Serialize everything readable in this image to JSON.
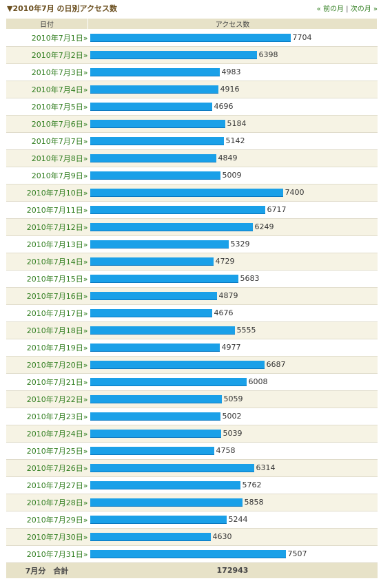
{
  "header": {
    "title": "▼2010年7月 の日別アクセス数",
    "prev_label": "« 前の月",
    "separator": "|",
    "next_label": "次の月 »"
  },
  "table": {
    "col_date": "日付",
    "col_access": "アクセス数",
    "total_label": "7月分　合計",
    "total_value": "172943"
  },
  "colors": {
    "bar": "#1aa0e8",
    "date_link": "#2f7d1e",
    "header_bg": "#e7e2c8"
  },
  "chart_data": {
    "type": "bar",
    "orientation": "horizontal",
    "categories": [
      "2010年7月1日»",
      "2010年7月2日»",
      "2010年7月3日»",
      "2010年7月4日»",
      "2010年7月5日»",
      "2010年7月6日»",
      "2010年7月7日»",
      "2010年7月8日»",
      "2010年7月9日»",
      "2010年7月10日»",
      "2010年7月11日»",
      "2010年7月12日»",
      "2010年7月13日»",
      "2010年7月14日»",
      "2010年7月15日»",
      "2010年7月16日»",
      "2010年7月17日»",
      "2010年7月18日»",
      "2010年7月19日»",
      "2010年7月20日»",
      "2010年7月21日»",
      "2010年7月22日»",
      "2010年7月23日»",
      "2010年7月24日»",
      "2010年7月25日»",
      "2010年7月26日»",
      "2010年7月27日»",
      "2010年7月28日»",
      "2010年7月29日»",
      "2010年7月30日»",
      "2010年7月31日»"
    ],
    "values": [
      7704,
      6398,
      4983,
      4916,
      4696,
      5184,
      5142,
      4849,
      5009,
      7400,
      6717,
      6249,
      5329,
      4729,
      5683,
      4879,
      4676,
      5555,
      4977,
      6687,
      6008,
      5059,
      5002,
      5039,
      4758,
      6314,
      5762,
      5858,
      5244,
      4630,
      7507
    ],
    "xlabel": "アクセス数",
    "ylabel": "日付"
  }
}
